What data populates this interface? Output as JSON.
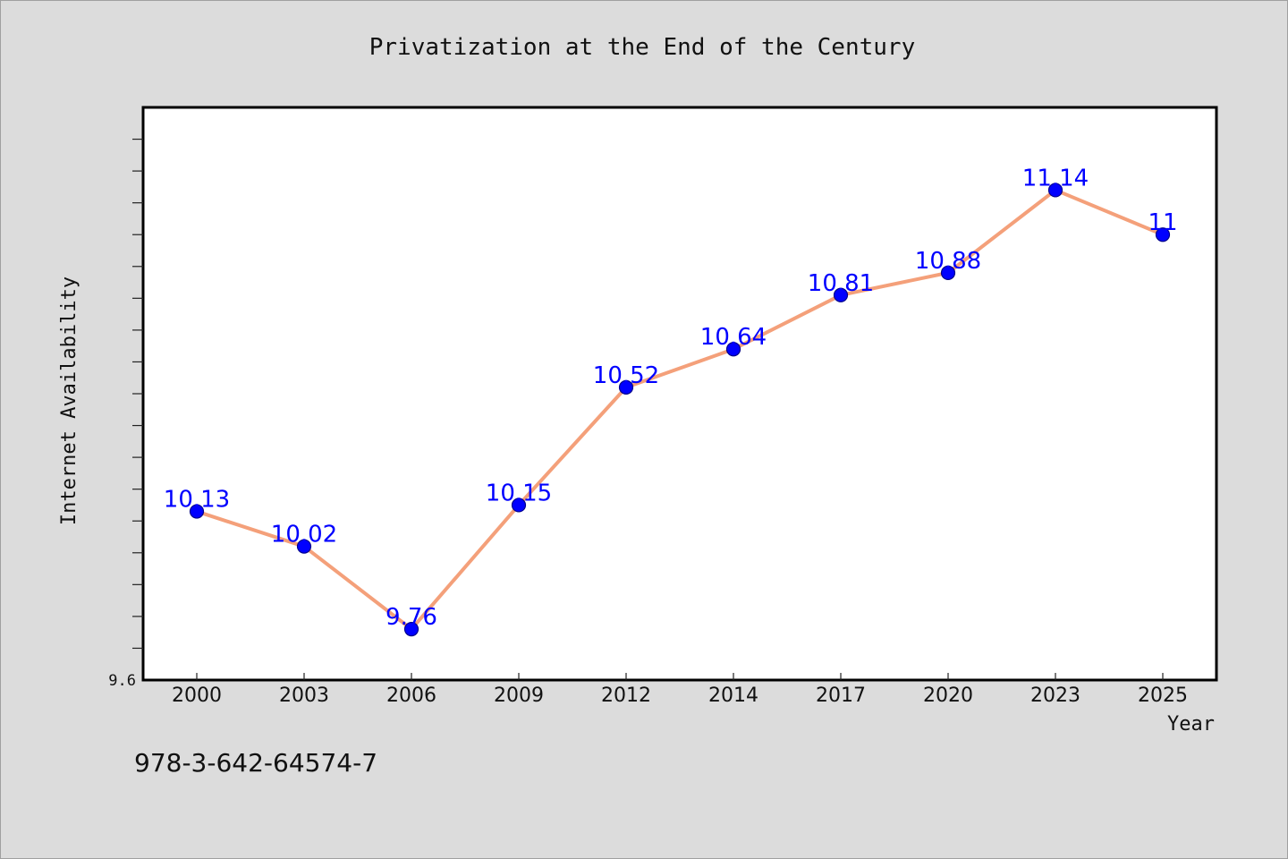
{
  "chart_data": {
    "type": "line",
    "title": "Privatization at the End of the Century",
    "xlabel": "Year",
    "ylabel": "Internet Availability",
    "categories": [
      "2000",
      "2003",
      "2006",
      "2009",
      "2012",
      "2014",
      "2017",
      "2020",
      "2023",
      "2025"
    ],
    "series": [
      {
        "values": [
          10.13,
          10.02,
          9.76,
          10.15,
          10.52,
          10.64,
          10.81,
          10.88,
          11.14,
          11
        ]
      }
    ],
    "data_labels": [
      "10.13",
      "10.02",
      "9.76",
      "10.15",
      "10.52",
      "10.64",
      "10.81",
      "10.88",
      "11.14",
      "11"
    ],
    "ylim": [
      9.6,
      11.4
    ],
    "y_tick_labels": [
      {
        "value": 9.6,
        "label": "9.6"
      }
    ],
    "y_minor_tick_step": 0.1,
    "grid": false,
    "legend": "none",
    "colors": {
      "line": "#f4a07a",
      "marker": "#0000ff",
      "marker_edge": "#00008b",
      "data_label": "#0000ff",
      "plot_background": "#ffffff",
      "figure_background": "#dcdcdc"
    }
  },
  "footnote": "978-3-642-64574-7"
}
